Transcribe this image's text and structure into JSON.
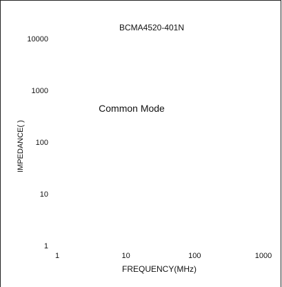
{
  "chart_data": {
    "type": "line",
    "title": "BCMA4520-401N",
    "annotation": "Common Mode",
    "xlabel": "FREQUENCY(MHz)",
    "ylabel": "IMPEDANCE(   )",
    "x_scale": "log",
    "y_scale": "log",
    "xlim": [
      1,
      1000
    ],
    "ylim": [
      1,
      10000
    ],
    "x_ticks": [
      "1",
      "10",
      "100",
      "1000"
    ],
    "y_ticks": [
      "1",
      "10",
      "100",
      "1000",
      "10000"
    ],
    "grid": false,
    "series": []
  }
}
